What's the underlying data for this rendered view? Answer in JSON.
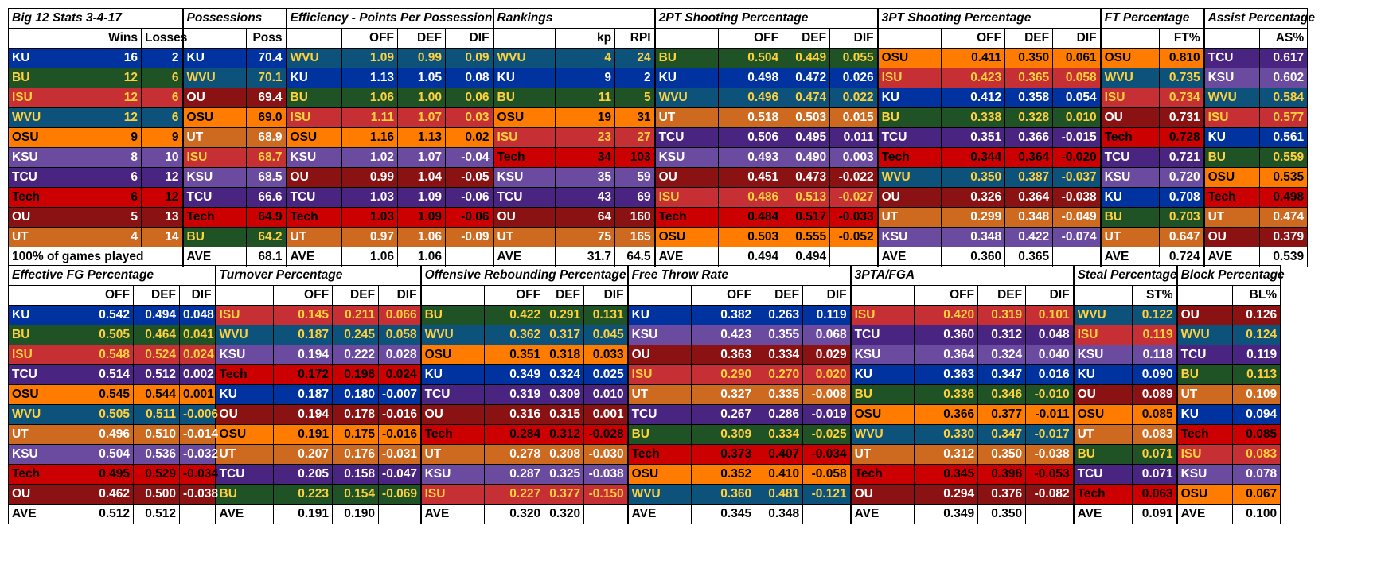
{
  "colors": {
    "KU": {
      "bg": "#0033a0",
      "fg": "#ffffff"
    },
    "BU": {
      "bg": "#1f5225",
      "fg": "#ffd23c"
    },
    "ISU": {
      "bg": "#c62f34",
      "fg": "#ffd23c"
    },
    "WVU": {
      "bg": "#0d527a",
      "fg": "#ffd23c"
    },
    "OSU": {
      "bg": "#ff7c00",
      "fg": "#000000"
    },
    "KSU": {
      "bg": "#6b4ba0",
      "fg": "#ffffff"
    },
    "TCU": {
      "bg": "#4a2481",
      "fg": "#ffffff"
    },
    "Tech": {
      "bg": "#cc0000",
      "fg": "#000000"
    },
    "OU": {
      "bg": "#8a1212",
      "fg": "#ffffff"
    },
    "UT": {
      "bg": "#cd6a1f",
      "fg": "#ffffff"
    }
  },
  "top_tables": {
    "records": {
      "title": "Big 12 Stats 3-4-17",
      "headers": [
        "",
        "Wins",
        "Losses"
      ],
      "rows": [
        [
          "KU",
          "16",
          "2"
        ],
        [
          "BU",
          "12",
          "6"
        ],
        [
          "ISU",
          "12",
          "6"
        ],
        [
          "WVU",
          "12",
          "6"
        ],
        [
          "OSU",
          "9",
          "9"
        ],
        [
          "KSU",
          "8",
          "10"
        ],
        [
          "TCU",
          "6",
          "12"
        ],
        [
          "Tech",
          "6",
          "12"
        ],
        [
          "OU",
          "5",
          "13"
        ],
        [
          "UT",
          "4",
          "14"
        ]
      ],
      "footer": [
        "100% of games played",
        "",
        ""
      ]
    },
    "possessions": {
      "title": "Possessions",
      "headers": [
        "",
        "Poss"
      ],
      "rows": [
        [
          "KU",
          "70.4"
        ],
        [
          "WVU",
          "70.1"
        ],
        [
          "OU",
          "69.4"
        ],
        [
          "OSU",
          "69.0"
        ],
        [
          "UT",
          "68.9"
        ],
        [
          "ISU",
          "68.7"
        ],
        [
          "KSU",
          "68.5"
        ],
        [
          "TCU",
          "66.6"
        ],
        [
          "Tech",
          "64.9"
        ],
        [
          "BU",
          "64.2"
        ]
      ],
      "footer": [
        "AVE",
        "68.1"
      ]
    },
    "efficiency": {
      "title": "Efficiency - Points Per Possession",
      "headers": [
        "",
        "OFF",
        "DEF",
        "DIF"
      ],
      "rows": [
        [
          "WVU",
          "1.09",
          "0.99",
          "0.09"
        ],
        [
          "KU",
          "1.13",
          "1.05",
          "0.08"
        ],
        [
          "BU",
          "1.06",
          "1.00",
          "0.06"
        ],
        [
          "ISU",
          "1.11",
          "1.07",
          "0.03"
        ],
        [
          "OSU",
          "1.16",
          "1.13",
          "0.02"
        ],
        [
          "KSU",
          "1.02",
          "1.07",
          "-0.04"
        ],
        [
          "OU",
          "0.99",
          "1.04",
          "-0.05"
        ],
        [
          "TCU",
          "1.03",
          "1.09",
          "-0.06"
        ],
        [
          "Tech",
          "1.03",
          "1.09",
          "-0.06"
        ],
        [
          "UT",
          "0.97",
          "1.06",
          "-0.09"
        ]
      ],
      "footer": [
        "AVE",
        "1.06",
        "1.06",
        ""
      ]
    },
    "rankings": {
      "title": "Rankings",
      "headers": [
        "",
        "kp",
        "RPI"
      ],
      "rows": [
        [
          "WVU",
          "4",
          "24"
        ],
        [
          "KU",
          "9",
          "2"
        ],
        [
          "BU",
          "11",
          "5"
        ],
        [
          "OSU",
          "19",
          "31"
        ],
        [
          "ISU",
          "23",
          "27"
        ],
        [
          "Tech",
          "34",
          "103"
        ],
        [
          "KSU",
          "35",
          "59"
        ],
        [
          "TCU",
          "43",
          "69"
        ],
        [
          "OU",
          "64",
          "160"
        ],
        [
          "UT",
          "75",
          "165"
        ]
      ],
      "footer": [
        "AVE",
        "31.7",
        "64.5"
      ]
    },
    "two_pt": {
      "title": "2PT Shooting Percentage",
      "headers": [
        "",
        "OFF",
        "DEF",
        "DIF"
      ],
      "rows": [
        [
          "BU",
          "0.504",
          "0.449",
          "0.055"
        ],
        [
          "KU",
          "0.498",
          "0.472",
          "0.026"
        ],
        [
          "WVU",
          "0.496",
          "0.474",
          "0.022"
        ],
        [
          "UT",
          "0.518",
          "0.503",
          "0.015"
        ],
        [
          "TCU",
          "0.506",
          "0.495",
          "0.011"
        ],
        [
          "KSU",
          "0.493",
          "0.490",
          "0.003"
        ],
        [
          "OU",
          "0.451",
          "0.473",
          "-0.022"
        ],
        [
          "ISU",
          "0.486",
          "0.513",
          "-0.027"
        ],
        [
          "Tech",
          "0.484",
          "0.517",
          "-0.033"
        ],
        [
          "OSU",
          "0.503",
          "0.555",
          "-0.052"
        ]
      ],
      "footer": [
        "AVE",
        "0.494",
        "0.494",
        ""
      ]
    },
    "three_pt": {
      "title": "3PT Shooting Percentage",
      "headers": [
        "",
        "OFF",
        "DEF",
        "DIF"
      ],
      "rows": [
        [
          "OSU",
          "0.411",
          "0.350",
          "0.061"
        ],
        [
          "ISU",
          "0.423",
          "0.365",
          "0.058"
        ],
        [
          "KU",
          "0.412",
          "0.358",
          "0.054"
        ],
        [
          "BU",
          "0.338",
          "0.328",
          "0.010"
        ],
        [
          "TCU",
          "0.351",
          "0.366",
          "-0.015"
        ],
        [
          "Tech",
          "0.344",
          "0.364",
          "-0.020"
        ],
        [
          "WVU",
          "0.350",
          "0.387",
          "-0.037"
        ],
        [
          "OU",
          "0.326",
          "0.364",
          "-0.038"
        ],
        [
          "UT",
          "0.299",
          "0.348",
          "-0.049"
        ],
        [
          "KSU",
          "0.348",
          "0.422",
          "-0.074"
        ]
      ],
      "footer": [
        "AVE",
        "0.360",
        "0.365",
        ""
      ]
    },
    "ft": {
      "title": "FT Percentage",
      "headers": [
        "",
        "FT%"
      ],
      "rows": [
        [
          "OSU",
          "0.810"
        ],
        [
          "WVU",
          "0.735"
        ],
        [
          "ISU",
          "0.734"
        ],
        [
          "OU",
          "0.731"
        ],
        [
          "Tech",
          "0.728"
        ],
        [
          "TCU",
          "0.721"
        ],
        [
          "KSU",
          "0.720"
        ],
        [
          "KU",
          "0.708"
        ],
        [
          "BU",
          "0.703"
        ],
        [
          "UT",
          "0.647"
        ]
      ],
      "footer": [
        "AVE",
        "0.724"
      ]
    },
    "assist": {
      "title": "Assist Percentage",
      "headers": [
        "",
        "AS%"
      ],
      "rows": [
        [
          "TCU",
          "0.617"
        ],
        [
          "KSU",
          "0.602"
        ],
        [
          "WVU",
          "0.584"
        ],
        [
          "ISU",
          "0.577"
        ],
        [
          "KU",
          "0.561"
        ],
        [
          "BU",
          "0.559"
        ],
        [
          "OSU",
          "0.535"
        ],
        [
          "Tech",
          "0.498"
        ],
        [
          "UT",
          "0.474"
        ],
        [
          "OU",
          "0.379"
        ]
      ],
      "footer": [
        "AVE",
        "0.539"
      ]
    }
  },
  "bottom_tables": {
    "efg": {
      "title": "Effective FG Percentage",
      "headers": [
        "",
        "OFF",
        "DEF",
        "DIF"
      ],
      "rows": [
        [
          "KU",
          "0.542",
          "0.494",
          "0.048"
        ],
        [
          "BU",
          "0.505",
          "0.464",
          "0.041"
        ],
        [
          "ISU",
          "0.548",
          "0.524",
          "0.024"
        ],
        [
          "TCU",
          "0.514",
          "0.512",
          "0.002"
        ],
        [
          "OSU",
          "0.545",
          "0.544",
          "0.001"
        ],
        [
          "WVU",
          "0.505",
          "0.511",
          "-0.006"
        ],
        [
          "UT",
          "0.496",
          "0.510",
          "-0.014"
        ],
        [
          "KSU",
          "0.504",
          "0.536",
          "-0.032"
        ],
        [
          "Tech",
          "0.495",
          "0.529",
          "-0.034"
        ],
        [
          "OU",
          "0.462",
          "0.500",
          "-0.038"
        ]
      ],
      "footer": [
        "AVE",
        "0.512",
        "0.512",
        ""
      ]
    },
    "turnover": {
      "title": "Turnover Percentage",
      "headers": [
        "",
        "OFF",
        "DEF",
        "DIF"
      ],
      "rows": [
        [
          "ISU",
          "0.145",
          "0.211",
          "0.066"
        ],
        [
          "WVU",
          "0.187",
          "0.245",
          "0.058"
        ],
        [
          "KSU",
          "0.194",
          "0.222",
          "0.028"
        ],
        [
          "Tech",
          "0.172",
          "0.196",
          "0.024"
        ],
        [
          "KU",
          "0.187",
          "0.180",
          "-0.007"
        ],
        [
          "OU",
          "0.194",
          "0.178",
          "-0.016"
        ],
        [
          "OSU",
          "0.191",
          "0.175",
          "-0.016"
        ],
        [
          "UT",
          "0.207",
          "0.176",
          "-0.031"
        ],
        [
          "TCU",
          "0.205",
          "0.158",
          "-0.047"
        ],
        [
          "BU",
          "0.223",
          "0.154",
          "-0.069"
        ]
      ],
      "footer": [
        "AVE",
        "0.191",
        "0.190",
        ""
      ]
    },
    "oreb": {
      "title": "Offensive Rebounding Percentage",
      "headers": [
        "",
        "OFF",
        "DEF",
        "DIF"
      ],
      "rows": [
        [
          "BU",
          "0.422",
          "0.291",
          "0.131"
        ],
        [
          "WVU",
          "0.362",
          "0.317",
          "0.045"
        ],
        [
          "OSU",
          "0.351",
          "0.318",
          "0.033"
        ],
        [
          "KU",
          "0.349",
          "0.324",
          "0.025"
        ],
        [
          "TCU",
          "0.319",
          "0.309",
          "0.010"
        ],
        [
          "OU",
          "0.316",
          "0.315",
          "0.001"
        ],
        [
          "Tech",
          "0.284",
          "0.312",
          "-0.028"
        ],
        [
          "UT",
          "0.278",
          "0.308",
          "-0.030"
        ],
        [
          "KSU",
          "0.287",
          "0.325",
          "-0.038"
        ],
        [
          "ISU",
          "0.227",
          "0.377",
          "-0.150"
        ]
      ],
      "footer": [
        "AVE",
        "0.320",
        "0.320",
        ""
      ]
    },
    "ftr": {
      "title": "Free Throw Rate",
      "headers": [
        "",
        "OFF",
        "DEF",
        "DIF"
      ],
      "rows": [
        [
          "KU",
          "0.382",
          "0.263",
          "0.119"
        ],
        [
          "KSU",
          "0.423",
          "0.355",
          "0.068"
        ],
        [
          "OU",
          "0.363",
          "0.334",
          "0.029"
        ],
        [
          "ISU",
          "0.290",
          "0.270",
          "0.020"
        ],
        [
          "UT",
          "0.327",
          "0.335",
          "-0.008"
        ],
        [
          "TCU",
          "0.267",
          "0.286",
          "-0.019"
        ],
        [
          "BU",
          "0.309",
          "0.334",
          "-0.025"
        ],
        [
          "Tech",
          "0.373",
          "0.407",
          "-0.034"
        ],
        [
          "OSU",
          "0.352",
          "0.410",
          "-0.058"
        ],
        [
          "WVU",
          "0.360",
          "0.481",
          "-0.121"
        ]
      ],
      "footer": [
        "AVE",
        "0.345",
        "0.348",
        ""
      ]
    },
    "threepta": {
      "title": "3PTA/FGA",
      "headers": [
        "",
        "OFF",
        "DEF",
        "DIF"
      ],
      "rows": [
        [
          "ISU",
          "0.420",
          "0.319",
          "0.101"
        ],
        [
          "TCU",
          "0.360",
          "0.312",
          "0.048"
        ],
        [
          "KSU",
          "0.364",
          "0.324",
          "0.040"
        ],
        [
          "KU",
          "0.363",
          "0.347",
          "0.016"
        ],
        [
          "BU",
          "0.336",
          "0.346",
          "-0.010"
        ],
        [
          "OSU",
          "0.366",
          "0.377",
          "-0.011"
        ],
        [
          "WVU",
          "0.330",
          "0.347",
          "-0.017"
        ],
        [
          "UT",
          "0.312",
          "0.350",
          "-0.038"
        ],
        [
          "Tech",
          "0.345",
          "0.398",
          "-0.053"
        ],
        [
          "OU",
          "0.294",
          "0.376",
          "-0.082"
        ]
      ],
      "footer": [
        "AVE",
        "0.349",
        "0.350",
        ""
      ]
    },
    "steal": {
      "title": "Steal Percentage",
      "headers": [
        "",
        "ST%"
      ],
      "rows": [
        [
          "WVU",
          "0.122"
        ],
        [
          "ISU",
          "0.119"
        ],
        [
          "KSU",
          "0.118"
        ],
        [
          "KU",
          "0.090"
        ],
        [
          "OU",
          "0.089"
        ],
        [
          "OSU",
          "0.085"
        ],
        [
          "UT",
          "0.083"
        ],
        [
          "BU",
          "0.071"
        ],
        [
          "TCU",
          "0.071"
        ],
        [
          "Tech",
          "0.063"
        ]
      ],
      "footer": [
        "AVE",
        "0.091"
      ]
    },
    "block": {
      "title": "Block Percentage",
      "headers": [
        "",
        "BL%"
      ],
      "rows": [
        [
          "OU",
          "0.126"
        ],
        [
          "WVU",
          "0.124"
        ],
        [
          "TCU",
          "0.119"
        ],
        [
          "BU",
          "0.113"
        ],
        [
          "UT",
          "0.109"
        ],
        [
          "KU",
          "0.094"
        ],
        [
          "Tech",
          "0.085"
        ],
        [
          "ISU",
          "0.083"
        ],
        [
          "KSU",
          "0.078"
        ],
        [
          "OSU",
          "0.067"
        ]
      ],
      "footer": [
        "AVE",
        "0.100"
      ]
    }
  }
}
